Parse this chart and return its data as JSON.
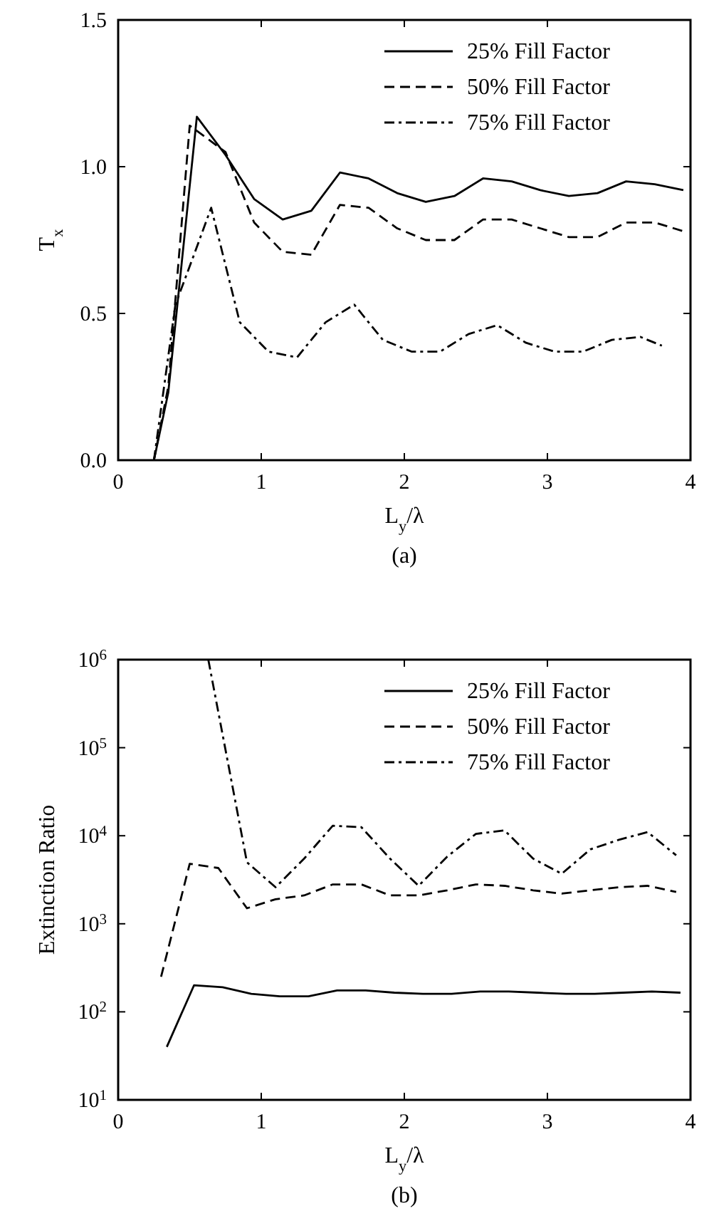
{
  "chart_data": [
    {
      "type": "line",
      "xlabel": "L$_{y}$/λ",
      "ylabel": "T$_{x}$",
      "annotations": [
        "(a)"
      ],
      "xlim": [
        0,
        4
      ],
      "xticks": [
        0,
        1,
        2,
        3,
        4
      ],
      "ylim": [
        0,
        1.5
      ],
      "yticks": [
        {
          "value": 0,
          "label": "0.0"
        },
        0.5,
        {
          "value": 1,
          "label": "1.0"
        },
        1.5
      ],
      "legend": "top right",
      "grid": false,
      "marker": "none",
      "series": [
        {
          "name": "25% Fill Factor",
          "color": "#000000",
          "line_style": "solid",
          "x": [
            0.25,
            0.35,
            0.55,
            0.75,
            0.95,
            1.15,
            1.35,
            1.55,
            1.75,
            1.95,
            2.15,
            2.35,
            2.55,
            2.75,
            2.95,
            3.15,
            3.35,
            3.55,
            3.75,
            3.95
          ],
          "values": [
            0,
            0.23,
            1.17,
            1.04,
            0.89,
            0.82,
            0.85,
            0.98,
            0.96,
            0.91,
            0.88,
            0.9,
            0.96,
            0.95,
            0.92,
            0.9,
            0.91,
            0.95,
            0.94,
            0.92
          ]
        },
        {
          "name": "50% Fill Factor",
          "color": "#000000",
          "line_style": "dashed",
          "x": [
            0.25,
            0.35,
            0.5,
            0.75,
            0.95,
            1.15,
            1.35,
            1.55,
            1.75,
            1.95,
            2.15,
            2.35,
            2.55,
            2.75,
            2.95,
            3.15,
            3.35,
            3.55,
            3.75,
            3.95
          ],
          "values": [
            0,
            0.25,
            1.14,
            1.05,
            0.81,
            0.71,
            0.7,
            0.87,
            0.86,
            0.79,
            0.75,
            0.75,
            0.82,
            0.82,
            0.79,
            0.76,
            0.76,
            0.81,
            0.81,
            0.78
          ]
        },
        {
          "name": "75% Fill Factor",
          "color": "#000000",
          "line_style": "dashdot",
          "x": [
            0.25,
            0.4,
            0.53,
            0.65,
            0.85,
            1.05,
            1.25,
            1.45,
            1.65,
            1.85,
            2.05,
            2.25,
            2.45,
            2.65,
            2.85,
            3.05,
            3.25,
            3.45,
            3.65,
            3.8
          ],
          "values": [
            0,
            0.53,
            0.7,
            0.86,
            0.47,
            0.37,
            0.35,
            0.47,
            0.53,
            0.41,
            0.37,
            0.37,
            0.43,
            0.46,
            0.4,
            0.37,
            0.37,
            0.41,
            0.42,
            0.39
          ]
        }
      ]
    },
    {
      "type": "line",
      "xlabel": "L$_{y}$/λ",
      "ylabel": "Extinction Ratio",
      "annotations": [
        "(b)"
      ],
      "log": "y",
      "xlim": [
        0,
        4
      ],
      "xticks": [
        0,
        1,
        2,
        3,
        4
      ],
      "ylim": [
        10,
        1000000
      ],
      "yticks": [
        {
          "value": 10,
          "label": "10$^{1}$"
        },
        {
          "value": 100,
          "label": "10$^{2}$"
        },
        {
          "value": 1000,
          "label": "10$^{3}$"
        },
        {
          "value": 10000,
          "label": "10$^{4}$"
        },
        {
          "value": 100000,
          "label": "10$^{5}$"
        },
        {
          "value": 1000000,
          "label": "10$^{6}$"
        }
      ],
      "legend": "top right",
      "grid": false,
      "marker": "none",
      "series": [
        {
          "name": "25% Fill Factor",
          "color": "#000000",
          "line_style": "solid",
          "x": [
            0.34,
            0.53,
            0.73,
            0.93,
            1.13,
            1.33,
            1.53,
            1.73,
            1.93,
            2.13,
            2.33,
            2.53,
            2.73,
            2.93,
            3.13,
            3.33,
            3.53,
            3.73,
            3.93
          ],
          "values": [
            40,
            200,
            190,
            160,
            150,
            150,
            175,
            175,
            165,
            160,
            160,
            170,
            170,
            165,
            160,
            160,
            165,
            170,
            165
          ]
        },
        {
          "name": "50% Fill Factor",
          "color": "#000000",
          "line_style": "dashed",
          "x": [
            0.3,
            0.5,
            0.7,
            0.9,
            1.1,
            1.3,
            1.5,
            1.7,
            1.9,
            2.1,
            2.3,
            2.5,
            2.7,
            2.9,
            3.1,
            3.3,
            3.5,
            3.7,
            3.9
          ],
          "values": [
            250,
            4800,
            4300,
            1500,
            1900,
            2100,
            2800,
            2800,
            2100,
            2100,
            2400,
            2800,
            2700,
            2400,
            2200,
            2400,
            2600,
            2700,
            2300
          ]
        },
        {
          "name": "75% Fill Factor",
          "color": "#000000",
          "line_style": "dashdot",
          "x": [
            0.63,
            0.9,
            1.1,
            1.3,
            1.5,
            1.7,
            1.9,
            2.1,
            2.3,
            2.5,
            2.7,
            2.9,
            3.1,
            3.3,
            3.5,
            3.7,
            3.9
          ],
          "values": [
            1000000,
            5000,
            2600,
            5500,
            13000,
            12500,
            5500,
            2700,
            5800,
            10500,
            11500,
            5500,
            3700,
            7000,
            9000,
            11000,
            6000
          ]
        }
      ]
    }
  ]
}
